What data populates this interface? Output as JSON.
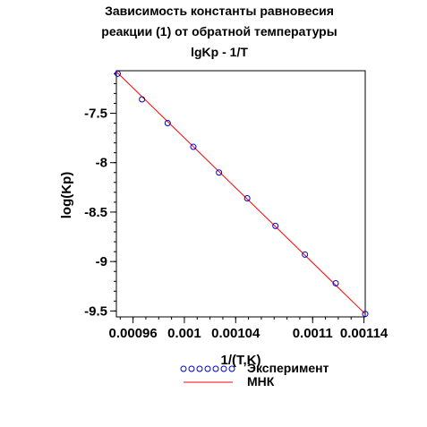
{
  "chart_data": {
    "type": "scatter",
    "title_lines": [
      "Зависимость константы равновесия",
      "реакции (1) от обратной температуры",
      "lgKp - 1/T"
    ],
    "xlabel": "1/(T,K)",
    "ylabel": "log(Kp)",
    "xlim": [
      0.000947,
      0.001141
    ],
    "ylim": [
      -9.56,
      -7.07
    ],
    "x_ticks": [
      {
        "value": 0.00096,
        "label": "0.00096"
      },
      {
        "value": 0.001,
        "label": "0.001"
      },
      {
        "value": 0.00104,
        "label": "0.00104"
      },
      {
        "value": 0.0011,
        "label": "0.0011"
      },
      {
        "value": 0.00114,
        "label": "0.00114"
      }
    ],
    "y_ticks": [
      {
        "value": -7.5,
        "label": "-7.5"
      },
      {
        "value": -8,
        "label": "-8"
      },
      {
        "value": -8.5,
        "label": "-8.5"
      },
      {
        "value": -9,
        "label": "-9"
      },
      {
        "value": -9.5,
        "label": "-9.5"
      }
    ],
    "series": [
      {
        "name": "Эксперимент",
        "kind": "markers",
        "color": "#0000cc",
        "marker": "circle-open",
        "x": [
          0.000948,
          0.000967,
          0.000987,
          0.001007,
          0.001027,
          0.001049,
          0.001071,
          0.001094,
          0.001118,
          0.001141
        ],
        "y": [
          -7.1,
          -7.36,
          -7.6,
          -7.84,
          -8.1,
          -8.36,
          -8.64,
          -8.93,
          -9.22,
          -9.53
        ]
      },
      {
        "name": "МНК",
        "kind": "line",
        "color": "#ff0000",
        "x": [
          0.000947,
          0.001141
        ],
        "y": [
          -7.08,
          -9.53
        ]
      }
    ],
    "legend_position": "bottom",
    "grid": false
  }
}
